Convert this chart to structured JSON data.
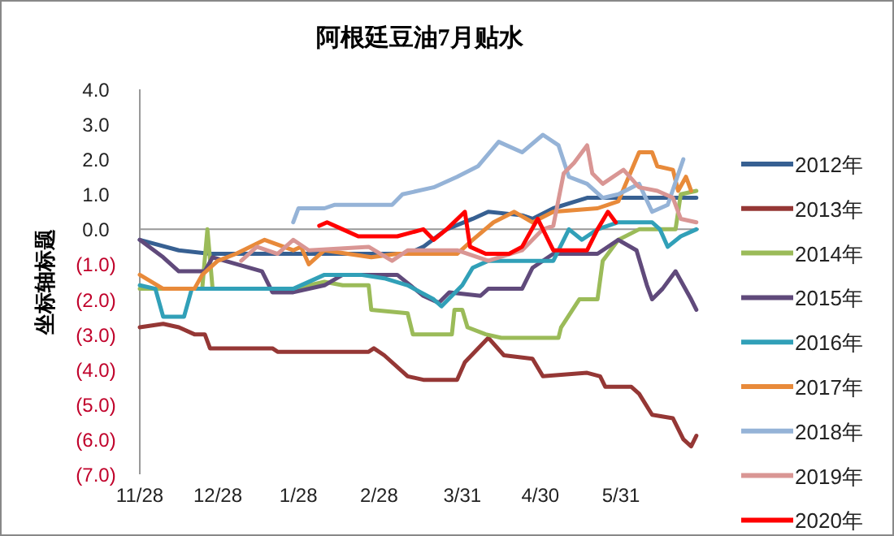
{
  "chart_data": {
    "type": "line",
    "title": "阿根廷豆油7月贴水",
    "ylabel": "坐标轴标题",
    "legend": "right",
    "grid": false,
    "ref_lines": [
      {
        "axis": "y",
        "value": 0,
        "color": "#999999"
      }
    ],
    "marker": "none",
    "line_style": "solid",
    "xlim": [
      "2019-11-28",
      "2020-06-30"
    ],
    "xticks": [
      {
        "value": "2019-11-28",
        "label": "11/28"
      },
      {
        "value": "2019-12-28",
        "label": "12/28"
      },
      {
        "value": "2020-01-28",
        "label": "1/28"
      },
      {
        "value": "2020-02-28",
        "label": "2/28"
      },
      {
        "value": "2020-03-31",
        "label": "3/31"
      },
      {
        "value": "2020-04-30",
        "label": "4/30"
      },
      {
        "value": "2020-05-31",
        "label": "5/31"
      }
    ],
    "ylim": [
      -7,
      4
    ],
    "yticks": [
      {
        "value": 4,
        "label": "4.0"
      },
      {
        "value": 3,
        "label": "3.0"
      },
      {
        "value": 2,
        "label": "2.0"
      },
      {
        "value": 1,
        "label": "1.0"
      },
      {
        "value": 0,
        "label": "0.0"
      },
      {
        "value": -1,
        "label": "(1.0)"
      },
      {
        "value": -2,
        "label": "(2.0)"
      },
      {
        "value": -3,
        "label": "(3.0)"
      },
      {
        "value": -4,
        "label": "(4.0)"
      },
      {
        "value": -5,
        "label": "(5.0)"
      },
      {
        "value": -6,
        "label": "(6.0)"
      },
      {
        "value": -7,
        "label": "(7.0)"
      }
    ],
    "series": [
      {
        "name": "2012年",
        "color": "#376092",
        "x": [
          "2019-11-28",
          "2019-12-13",
          "2019-12-25",
          "2020-01-26",
          "2020-03-10",
          "2020-03-16",
          "2020-03-25",
          "2020-04-04",
          "2020-04-10",
          "2020-04-23",
          "2020-04-27",
          "2020-05-05",
          "2020-05-18",
          "2020-06-29"
        ],
        "values": [
          -0.3,
          -0.6,
          -0.7,
          -0.7,
          -0.7,
          -0.5,
          0.0,
          0.3,
          0.5,
          0.4,
          0.3,
          0.6,
          0.9,
          0.9
        ]
      },
      {
        "name": "2013年",
        "color": "#953735",
        "x": [
          "2019-11-28",
          "2019-12-07",
          "2019-12-13",
          "2019-12-19",
          "2019-12-23",
          "2019-12-25",
          "2020-01-18",
          "2020-01-20",
          "2020-02-24",
          "2020-02-26",
          "2020-03-01",
          "2020-03-10",
          "2020-03-16",
          "2020-03-29",
          "2020-04-01",
          "2020-04-10",
          "2020-04-16",
          "2020-04-27",
          "2020-05-01",
          "2020-05-18",
          "2020-05-23",
          "2020-05-25",
          "2020-06-04",
          "2020-06-07",
          "2020-06-12",
          "2020-06-20",
          "2020-06-24",
          "2020-06-27",
          "2020-06-29"
        ],
        "values": [
          -2.8,
          -2.7,
          -2.8,
          -3.0,
          -3.0,
          -3.4,
          -3.4,
          -3.5,
          -3.5,
          -3.4,
          -3.6,
          -4.2,
          -4.3,
          -4.3,
          -3.8,
          -3.1,
          -3.6,
          -3.7,
          -4.2,
          -4.1,
          -4.2,
          -4.5,
          -4.5,
          -4.7,
          -5.3,
          -5.4,
          -6.0,
          -6.2,
          -5.9
        ]
      },
      {
        "name": "2014年",
        "color": "#9bbb59",
        "x": [
          "2019-11-28",
          "2019-12-22",
          "2019-12-24",
          "2019-12-26",
          "2020-01-26",
          "2020-02-07",
          "2020-02-14",
          "2020-02-24",
          "2020-02-25",
          "2020-03-10",
          "2020-03-12",
          "2020-03-27",
          "2020-03-28",
          "2020-03-31",
          "2020-04-02",
          "2020-04-09",
          "2020-04-15",
          "2020-05-07",
          "2020-05-08",
          "2020-05-15",
          "2020-05-22",
          "2020-05-24",
          "2020-05-30",
          "2020-06-07",
          "2020-06-21",
          "2020-06-23",
          "2020-06-29"
        ],
        "values": [
          -1.7,
          -1.7,
          0.0,
          -1.7,
          -1.7,
          -1.5,
          -1.6,
          -1.6,
          -2.3,
          -2.4,
          -3.0,
          -3.0,
          -2.3,
          -2.3,
          -2.8,
          -3.0,
          -3.1,
          -3.1,
          -2.8,
          -2.0,
          -2.0,
          -0.9,
          -0.3,
          0.0,
          0.0,
          1.0,
          1.1
        ]
      },
      {
        "name": "2015年",
        "color": "#604a7b",
        "x": [
          "2019-11-28",
          "2019-12-07",
          "2019-12-13",
          "2019-12-23",
          "2019-12-26",
          "2020-01-14",
          "2020-01-18",
          "2020-01-26",
          "2020-02-07",
          "2020-02-14",
          "2020-03-06",
          "2020-03-16",
          "2020-03-22",
          "2020-03-26",
          "2020-04-07",
          "2020-04-10",
          "2020-04-23",
          "2020-04-27",
          "2020-05-05",
          "2020-05-22",
          "2020-05-30",
          "2020-06-06",
          "2020-06-10",
          "2020-06-12",
          "2020-06-16",
          "2020-06-21",
          "2020-06-27",
          "2020-06-29"
        ],
        "values": [
          -0.3,
          -0.8,
          -1.2,
          -1.2,
          -0.8,
          -1.2,
          -1.8,
          -1.8,
          -1.6,
          -1.3,
          -1.3,
          -1.9,
          -2.1,
          -1.8,
          -1.9,
          -1.7,
          -1.7,
          -1.1,
          -0.7,
          -0.7,
          -0.3,
          -0.6,
          -1.6,
          -2.0,
          -1.7,
          -1.2,
          -2.0,
          -2.3
        ]
      },
      {
        "name": "2016年",
        "color": "#31a0b8",
        "x": [
          "2019-11-28",
          "2019-12-04",
          "2019-12-07",
          "2019-12-15",
          "2019-12-18",
          "2020-01-16",
          "2020-01-26",
          "2020-02-07",
          "2020-02-21",
          "2020-03-01",
          "2020-03-10",
          "2020-03-20",
          "2020-03-23",
          "2020-03-31",
          "2020-04-04",
          "2020-04-10",
          "2020-05-05",
          "2020-05-11",
          "2020-05-16",
          "2020-05-22",
          "2020-05-30",
          "2020-06-12",
          "2020-06-15",
          "2020-06-18",
          "2020-06-23",
          "2020-06-29"
        ],
        "values": [
          -1.6,
          -1.7,
          -2.5,
          -2.5,
          -1.7,
          -1.7,
          -1.7,
          -1.3,
          -1.3,
          -1.4,
          -1.6,
          -2.0,
          -2.2,
          -1.6,
          -1.1,
          -0.9,
          -0.9,
          0.0,
          -0.3,
          0.0,
          0.2,
          0.2,
          0.0,
          -0.5,
          -0.2,
          0.0
        ]
      },
      {
        "name": "2017年",
        "color": "#e88a3a",
        "x": [
          "2019-11-28",
          "2019-12-07",
          "2019-12-19",
          "2019-12-22",
          "2019-12-28",
          "2020-01-04",
          "2020-01-15",
          "2020-01-26",
          "2020-01-29",
          "2020-02-01",
          "2020-02-07",
          "2020-02-25",
          "2020-03-06",
          "2020-03-29",
          "2020-04-04",
          "2020-04-12",
          "2020-04-20",
          "2020-04-27",
          "2020-05-05",
          "2020-05-22",
          "2020-05-30",
          "2020-06-07",
          "2020-06-12",
          "2020-06-14",
          "2020-06-20",
          "2020-06-22",
          "2020-06-25",
          "2020-06-27"
        ],
        "values": [
          -1.3,
          -1.7,
          -1.7,
          -1.3,
          -0.9,
          -0.7,
          -0.3,
          -0.6,
          -0.5,
          -1.0,
          -0.6,
          -0.8,
          -0.7,
          -0.7,
          -0.3,
          0.2,
          0.5,
          0.2,
          0.5,
          0.6,
          0.8,
          2.2,
          2.2,
          1.8,
          1.7,
          1.1,
          1.5,
          1.1
        ]
      },
      {
        "name": "2018年",
        "color": "#95b3d7",
        "x": [
          "2020-01-26",
          "2020-01-28",
          "2020-02-07",
          "2020-02-11",
          "2020-03-04",
          "2020-03-08",
          "2020-03-20",
          "2020-03-29",
          "2020-04-06",
          "2020-04-14",
          "2020-04-23",
          "2020-05-01",
          "2020-05-07",
          "2020-05-11",
          "2020-05-18",
          "2020-05-24",
          "2020-05-30",
          "2020-06-07",
          "2020-06-12",
          "2020-06-18",
          "2020-06-24"
        ],
        "values": [
          0.2,
          0.6,
          0.6,
          0.7,
          0.7,
          1.0,
          1.2,
          1.5,
          1.8,
          2.5,
          2.2,
          2.7,
          2.4,
          1.5,
          1.3,
          0.9,
          1.0,
          1.3,
          0.5,
          0.7,
          2.0
        ]
      },
      {
        "name": "2019年",
        "color": "#d99694",
        "x": [
          "2020-01-06",
          "2020-01-12",
          "2020-01-20",
          "2020-01-26",
          "2020-02-01",
          "2020-02-24",
          "2020-03-04",
          "2020-03-10",
          "2020-03-29",
          "2020-04-10",
          "2020-04-23",
          "2020-05-01",
          "2020-05-05",
          "2020-05-09",
          "2020-05-13",
          "2020-05-18",
          "2020-05-20",
          "2020-05-24",
          "2020-06-01",
          "2020-06-07",
          "2020-06-14",
          "2020-06-20",
          "2020-06-23",
          "2020-06-29"
        ],
        "values": [
          -0.9,
          -0.5,
          -0.7,
          -0.3,
          -0.6,
          -0.5,
          -0.9,
          -0.6,
          -0.6,
          -0.9,
          -0.6,
          0.0,
          0.1,
          1.6,
          1.9,
          2.4,
          1.6,
          1.3,
          1.7,
          1.2,
          1.1,
          0.9,
          0.3,
          0.2
        ]
      },
      {
        "name": "2020年",
        "color": "#ff0000",
        "x": [
          "2020-02-05",
          "2020-02-08",
          "2020-02-14",
          "2020-02-20",
          "2020-03-06",
          "2020-03-16",
          "2020-03-20",
          "2020-03-25",
          "2020-04-01",
          "2020-04-03",
          "2020-04-09",
          "2020-04-18",
          "2020-04-23",
          "2020-04-29",
          "2020-05-05",
          "2020-05-18",
          "2020-05-22",
          "2020-05-26",
          "2020-05-29"
        ],
        "values": [
          0.1,
          0.2,
          0.0,
          -0.2,
          -0.2,
          0.0,
          -0.3,
          0.0,
          0.5,
          -0.5,
          -0.7,
          -0.7,
          -0.5,
          0.3,
          -0.6,
          -0.6,
          0.0,
          0.5,
          0.2
        ]
      }
    ]
  }
}
